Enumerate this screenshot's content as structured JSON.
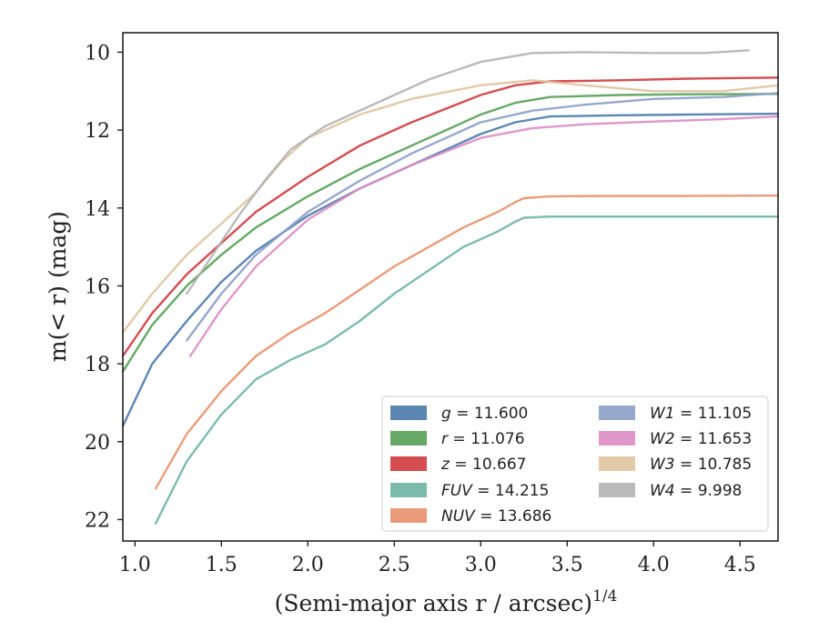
{
  "chart_data": {
    "type": "line",
    "xlabel": "(Semi-major axis r / arcsec)",
    "xlabel_exponent": "1/4",
    "ylabel": "m(< r) (mag)",
    "xlim": [
      0.93,
      4.72
    ],
    "ylim": [
      22.55,
      9.5
    ],
    "y_inverted": true,
    "xticks": [
      "1.0",
      "1.5",
      "2.0",
      "2.5",
      "3.0",
      "3.5",
      "4.0",
      "4.5"
    ],
    "yticks": [
      "10",
      "12",
      "14",
      "16",
      "18",
      "20",
      "22"
    ],
    "grid": false,
    "legend_position": "lower-right",
    "legend_columns": 2,
    "series": [
      {
        "name": "g = 11.600",
        "label_var": "g",
        "label_val": "11.600",
        "color": "#4a7aab",
        "x": [
          0.93,
          1.1,
          1.3,
          1.5,
          1.7,
          2.0,
          2.3,
          2.6,
          3.0,
          3.2,
          3.4,
          3.8,
          4.2,
          4.72
        ],
        "y": [
          19.6,
          18.0,
          16.9,
          15.9,
          15.1,
          14.2,
          13.5,
          12.9,
          12.1,
          11.8,
          11.65,
          11.62,
          11.6,
          11.58
        ]
      },
      {
        "name": "r = 11.076",
        "label_var": "r",
        "label_val": "11.076",
        "color": "#55a055",
        "x": [
          0.93,
          1.1,
          1.3,
          1.5,
          1.7,
          2.0,
          2.3,
          2.6,
          3.0,
          3.2,
          3.4,
          3.8,
          4.2,
          4.72
        ],
        "y": [
          18.2,
          17.0,
          16.0,
          15.2,
          14.5,
          13.7,
          13.0,
          12.4,
          11.6,
          11.3,
          11.15,
          11.1,
          11.08,
          11.07
        ]
      },
      {
        "name": "z = 10.667",
        "label_var": "z",
        "label_val": "10.667",
        "color": "#cf3a3e",
        "x": [
          0.93,
          1.1,
          1.3,
          1.5,
          1.7,
          2.0,
          2.3,
          2.6,
          3.0,
          3.2,
          3.4,
          3.8,
          4.2,
          4.72
        ],
        "y": [
          17.8,
          16.7,
          15.7,
          14.9,
          14.1,
          13.2,
          12.4,
          11.8,
          11.1,
          10.85,
          10.75,
          10.72,
          10.68,
          10.65
        ]
      },
      {
        "name": "FUV = 14.215",
        "label_var": "FUV",
        "label_val": "14.215",
        "color": "#6fb5a3",
        "x": [
          1.12,
          1.3,
          1.5,
          1.7,
          1.9,
          2.1,
          2.3,
          2.5,
          2.7,
          2.9,
          3.1,
          3.2,
          3.25,
          3.4,
          3.8,
          4.2,
          4.72
        ],
        "y": [
          22.1,
          20.5,
          19.3,
          18.4,
          17.9,
          17.5,
          16.9,
          16.2,
          15.6,
          15.0,
          14.6,
          14.35,
          14.25,
          14.22,
          14.22,
          14.22,
          14.22
        ]
      },
      {
        "name": "NUV = 13.686",
        "label_var": "NUV",
        "label_val": "13.686",
        "color": "#e8916c",
        "x": [
          1.12,
          1.3,
          1.5,
          1.7,
          1.9,
          2.1,
          2.3,
          2.5,
          2.7,
          2.9,
          3.1,
          3.2,
          3.25,
          3.4,
          3.8,
          4.2,
          4.72
        ],
        "y": [
          21.2,
          19.8,
          18.7,
          17.8,
          17.2,
          16.7,
          16.1,
          15.5,
          15.0,
          14.5,
          14.1,
          13.85,
          13.75,
          13.7,
          13.69,
          13.69,
          13.68
        ]
      },
      {
        "name": "W1 = 11.105",
        "label_var": "W1",
        "label_val": "11.105",
        "color": "#8c9fc8",
        "x": [
          1.3,
          1.5,
          1.7,
          2.0,
          2.3,
          2.6,
          3.0,
          3.3,
          3.6,
          4.0,
          4.4,
          4.72
        ],
        "y": [
          17.4,
          16.2,
          15.2,
          14.1,
          13.3,
          12.6,
          11.8,
          11.5,
          11.35,
          11.2,
          11.15,
          11.05
        ]
      },
      {
        "name": "W2 = 11.653",
        "label_var": "W2",
        "label_val": "11.653",
        "color": "#dd8cc3",
        "x": [
          1.32,
          1.5,
          1.7,
          2.0,
          2.3,
          2.6,
          3.0,
          3.3,
          3.6,
          4.0,
          4.4,
          4.72
        ],
        "y": [
          17.8,
          16.6,
          15.5,
          14.3,
          13.5,
          12.9,
          12.2,
          11.95,
          11.85,
          11.78,
          11.72,
          11.65
        ]
      },
      {
        "name": "W3 = 10.785",
        "label_var": "W3",
        "label_val": "10.785",
        "color": "#dfc39d",
        "x": [
          0.93,
          1.1,
          1.3,
          1.5,
          1.7,
          1.85,
          2.0,
          2.3,
          2.6,
          3.0,
          3.3,
          3.6,
          4.0,
          4.4,
          4.72
        ],
        "y": [
          17.2,
          16.2,
          15.2,
          14.4,
          13.6,
          12.8,
          12.2,
          11.6,
          11.2,
          10.85,
          10.72,
          10.85,
          11.0,
          11.0,
          10.85
        ]
      },
      {
        "name": "W4 = 9.998",
        "label_var": "W4",
        "label_val": "9.998",
        "color": "#b3b3b3",
        "x": [
          1.3,
          1.45,
          1.6,
          1.75,
          1.9,
          2.1,
          2.4,
          2.7,
          3.0,
          3.3,
          3.6,
          4.0,
          4.3,
          4.55
        ],
        "y": [
          16.2,
          15.2,
          14.2,
          13.3,
          12.5,
          11.9,
          11.3,
          10.7,
          10.25,
          10.02,
          10.0,
          10.02,
          10.02,
          9.95
        ]
      }
    ]
  }
}
